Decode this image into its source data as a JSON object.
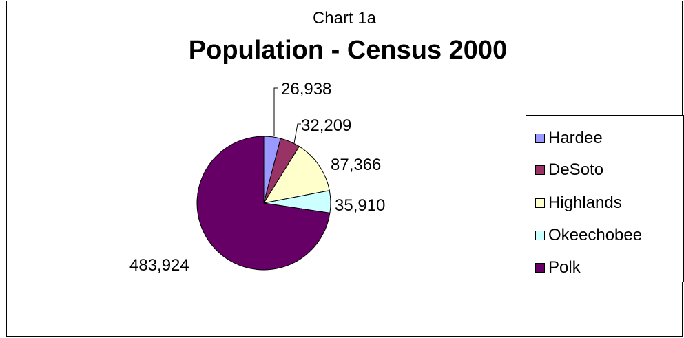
{
  "chart_data": {
    "type": "pie",
    "subtitle": "Chart 1a",
    "title": "Population - Census 2000",
    "slices": [
      {
        "name": "Hardee",
        "value": 26938,
        "label": "26,938",
        "color": "#9999ff"
      },
      {
        "name": "DeSoto",
        "value": 32209,
        "label": "32,209",
        "color": "#993366"
      },
      {
        "name": "Highlands",
        "value": 87366,
        "label": "87,366",
        "color": "#ffffcc"
      },
      {
        "name": "Okeechobee",
        "value": 35910,
        "label": "35,910",
        "color": "#ccffff"
      },
      {
        "name": "Polk",
        "value": 483924,
        "label": "483,924",
        "color": "#660066"
      }
    ],
    "legend_position": "right"
  }
}
